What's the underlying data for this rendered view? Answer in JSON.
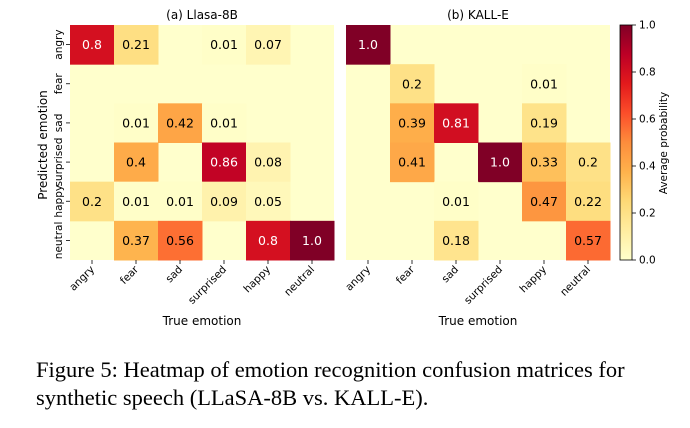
{
  "chart_data": [
    {
      "type": "heatmap",
      "title": "(a) Llasa-8B",
      "xlabel": "True emotion",
      "ylabel": "Predicted emotion",
      "x_categories": [
        "angry",
        "fear",
        "sad",
        "surprised",
        "happy",
        "neutral"
      ],
      "y_categories": [
        "angry",
        "fear",
        "sad",
        "surprised",
        "happy",
        "neutral"
      ],
      "values": [
        [
          0.8,
          0.21,
          null,
          0.01,
          0.07,
          null
        ],
        [
          null,
          null,
          null,
          null,
          null,
          null
        ],
        [
          null,
          0.01,
          0.42,
          0.01,
          null,
          null
        ],
        [
          null,
          0.4,
          null,
          0.86,
          0.08,
          null
        ],
        [
          0.2,
          0.01,
          0.01,
          0.09,
          0.05,
          null
        ],
        [
          null,
          0.37,
          0.56,
          null,
          0.8,
          1.0
        ]
      ],
      "value_labels": [
        [
          "0.8",
          "0.21",
          "",
          "0.01",
          "0.07",
          ""
        ],
        [
          "",
          "",
          "",
          "",
          "",
          ""
        ],
        [
          "",
          "0.01",
          "0.42",
          "0.01",
          "",
          ""
        ],
        [
          "",
          "0.4",
          "",
          "0.86",
          "0.08",
          ""
        ],
        [
          "0.2",
          "0.01",
          "0.01",
          "0.09",
          "0.05",
          ""
        ],
        [
          "",
          "0.37",
          "0.56",
          "",
          "0.8",
          "1.0"
        ]
      ]
    },
    {
      "type": "heatmap",
      "title": "(b) KALL-E",
      "xlabel": "True emotion",
      "ylabel": "",
      "x_categories": [
        "angry",
        "fear",
        "sad",
        "surprised",
        "happy",
        "neutral"
      ],
      "y_categories": [
        "angry",
        "fear",
        "sad",
        "surprised",
        "happy",
        "neutral"
      ],
      "values": [
        [
          1.0,
          null,
          null,
          null,
          null,
          null
        ],
        [
          null,
          0.2,
          null,
          null,
          0.01,
          null
        ],
        [
          null,
          0.39,
          0.81,
          null,
          0.19,
          null
        ],
        [
          null,
          0.41,
          null,
          1.0,
          0.33,
          0.2
        ],
        [
          null,
          null,
          0.01,
          null,
          0.47,
          0.22
        ],
        [
          null,
          null,
          0.18,
          null,
          null,
          0.57
        ]
      ],
      "value_labels": [
        [
          "1.0",
          "",
          "",
          "",
          "",
          ""
        ],
        [
          "",
          "0.2",
          "",
          "",
          "0.01",
          ""
        ],
        [
          "",
          "0.39",
          "0.81",
          "",
          "0.19",
          ""
        ],
        [
          "",
          "0.41",
          "",
          "1.0",
          "0.33",
          "0.2"
        ],
        [
          "",
          "",
          "0.01",
          "",
          "0.47",
          "0.22"
        ],
        [
          "",
          "",
          "0.18",
          "",
          "",
          "0.57"
        ]
      ]
    }
  ],
  "colorbar": {
    "label": "Average probability",
    "range": [
      0.0,
      1.0
    ],
    "ticks": [
      "0.0",
      "0.2",
      "0.4",
      "0.6",
      "0.8",
      "1.0"
    ],
    "colormap": [
      "#ffffcc",
      "#ffeda0",
      "#fed976",
      "#feb24c",
      "#fd8d3c",
      "#fc4e2a",
      "#e31a1c",
      "#bd0026",
      "#800026"
    ]
  },
  "caption": "Figure 5: Heatmap of emotion recognition confusion matrices for synthetic speech (LLaSA-8B vs. KALL-E)."
}
